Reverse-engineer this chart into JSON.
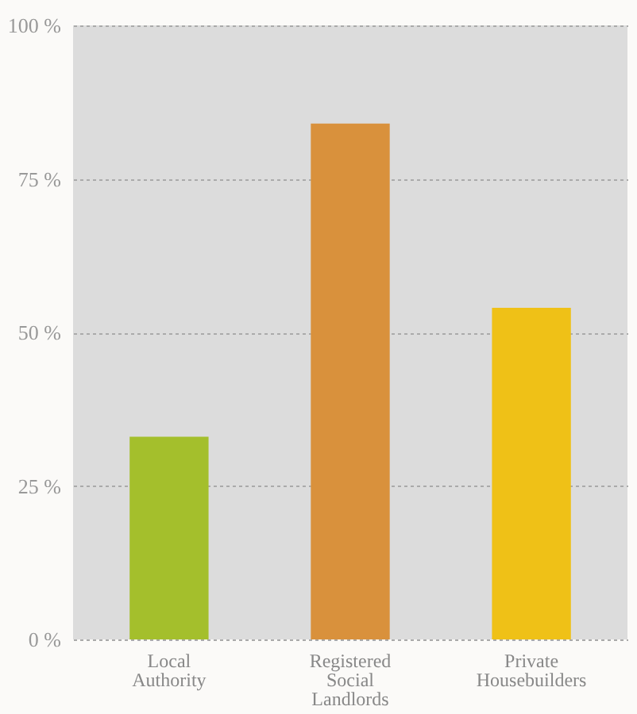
{
  "chart_data": {
    "type": "bar",
    "categories": [
      "Local Authority",
      "Registered Social Landlords",
      "Private Housebuilders"
    ],
    "values": [
      33,
      84,
      54
    ],
    "colors": [
      "#a4bf2c",
      "#d9913c",
      "#efc117"
    ],
    "ylim": [
      0,
      100
    ],
    "yticks": [
      {
        "value": 0,
        "label": "0 %"
      },
      {
        "value": 25,
        "label": "25 %"
      },
      {
        "value": 50,
        "label": "50 %"
      },
      {
        "value": 75,
        "label": "75 %"
      },
      {
        "value": 100,
        "label": "100 %"
      }
    ],
    "grid": true
  }
}
